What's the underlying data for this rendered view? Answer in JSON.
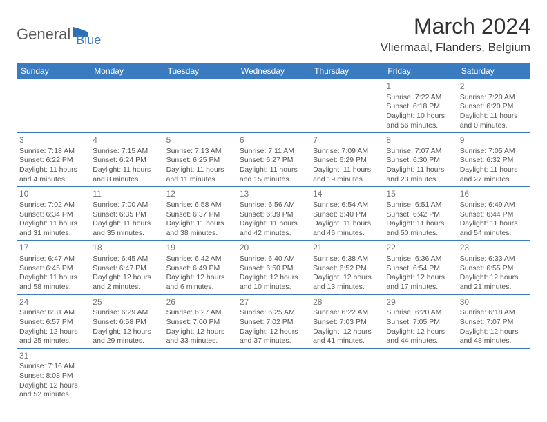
{
  "logo": {
    "text1": "General",
    "text2": "Blue"
  },
  "title": "March 2024",
  "location": "Vliermaal, Flanders, Belgium",
  "colors": {
    "header_bg": "#3b7bbf",
    "header_text": "#ffffff",
    "logo_gray": "#5a5a5a",
    "logo_blue": "#3b7bbf",
    "border": "#3b7bbf",
    "day_num": "#777777",
    "cell_text": "#555555",
    "title_text": "#333333",
    "bg": "#ffffff"
  },
  "typography": {
    "title_size": 32,
    "location_size": 17,
    "logo_size": 22,
    "header_cell_size": 12,
    "day_num_size": 12,
    "cell_text_size": 10.5
  },
  "days_of_week": [
    "Sunday",
    "Monday",
    "Tuesday",
    "Wednesday",
    "Thursday",
    "Friday",
    "Saturday"
  ],
  "weeks": [
    [
      null,
      null,
      null,
      null,
      null,
      {
        "n": "1",
        "sr": "Sunrise: 7:22 AM",
        "ss": "Sunset: 6:18 PM",
        "d1": "Daylight: 10 hours",
        "d2": "and 56 minutes."
      },
      {
        "n": "2",
        "sr": "Sunrise: 7:20 AM",
        "ss": "Sunset: 6:20 PM",
        "d1": "Daylight: 11 hours",
        "d2": "and 0 minutes."
      }
    ],
    [
      {
        "n": "3",
        "sr": "Sunrise: 7:18 AM",
        "ss": "Sunset: 6:22 PM",
        "d1": "Daylight: 11 hours",
        "d2": "and 4 minutes."
      },
      {
        "n": "4",
        "sr": "Sunrise: 7:15 AM",
        "ss": "Sunset: 6:24 PM",
        "d1": "Daylight: 11 hours",
        "d2": "and 8 minutes."
      },
      {
        "n": "5",
        "sr": "Sunrise: 7:13 AM",
        "ss": "Sunset: 6:25 PM",
        "d1": "Daylight: 11 hours",
        "d2": "and 11 minutes."
      },
      {
        "n": "6",
        "sr": "Sunrise: 7:11 AM",
        "ss": "Sunset: 6:27 PM",
        "d1": "Daylight: 11 hours",
        "d2": "and 15 minutes."
      },
      {
        "n": "7",
        "sr": "Sunrise: 7:09 AM",
        "ss": "Sunset: 6:29 PM",
        "d1": "Daylight: 11 hours",
        "d2": "and 19 minutes."
      },
      {
        "n": "8",
        "sr": "Sunrise: 7:07 AM",
        "ss": "Sunset: 6:30 PM",
        "d1": "Daylight: 11 hours",
        "d2": "and 23 minutes."
      },
      {
        "n": "9",
        "sr": "Sunrise: 7:05 AM",
        "ss": "Sunset: 6:32 PM",
        "d1": "Daylight: 11 hours",
        "d2": "and 27 minutes."
      }
    ],
    [
      {
        "n": "10",
        "sr": "Sunrise: 7:02 AM",
        "ss": "Sunset: 6:34 PM",
        "d1": "Daylight: 11 hours",
        "d2": "and 31 minutes."
      },
      {
        "n": "11",
        "sr": "Sunrise: 7:00 AM",
        "ss": "Sunset: 6:35 PM",
        "d1": "Daylight: 11 hours",
        "d2": "and 35 minutes."
      },
      {
        "n": "12",
        "sr": "Sunrise: 6:58 AM",
        "ss": "Sunset: 6:37 PM",
        "d1": "Daylight: 11 hours",
        "d2": "and 38 minutes."
      },
      {
        "n": "13",
        "sr": "Sunrise: 6:56 AM",
        "ss": "Sunset: 6:39 PM",
        "d1": "Daylight: 11 hours",
        "d2": "and 42 minutes."
      },
      {
        "n": "14",
        "sr": "Sunrise: 6:54 AM",
        "ss": "Sunset: 6:40 PM",
        "d1": "Daylight: 11 hours",
        "d2": "and 46 minutes."
      },
      {
        "n": "15",
        "sr": "Sunrise: 6:51 AM",
        "ss": "Sunset: 6:42 PM",
        "d1": "Daylight: 11 hours",
        "d2": "and 50 minutes."
      },
      {
        "n": "16",
        "sr": "Sunrise: 6:49 AM",
        "ss": "Sunset: 6:44 PM",
        "d1": "Daylight: 11 hours",
        "d2": "and 54 minutes."
      }
    ],
    [
      {
        "n": "17",
        "sr": "Sunrise: 6:47 AM",
        "ss": "Sunset: 6:45 PM",
        "d1": "Daylight: 11 hours",
        "d2": "and 58 minutes."
      },
      {
        "n": "18",
        "sr": "Sunrise: 6:45 AM",
        "ss": "Sunset: 6:47 PM",
        "d1": "Daylight: 12 hours",
        "d2": "and 2 minutes."
      },
      {
        "n": "19",
        "sr": "Sunrise: 6:42 AM",
        "ss": "Sunset: 6:49 PM",
        "d1": "Daylight: 12 hours",
        "d2": "and 6 minutes."
      },
      {
        "n": "20",
        "sr": "Sunrise: 6:40 AM",
        "ss": "Sunset: 6:50 PM",
        "d1": "Daylight: 12 hours",
        "d2": "and 10 minutes."
      },
      {
        "n": "21",
        "sr": "Sunrise: 6:38 AM",
        "ss": "Sunset: 6:52 PM",
        "d1": "Daylight: 12 hours",
        "d2": "and 13 minutes."
      },
      {
        "n": "22",
        "sr": "Sunrise: 6:36 AM",
        "ss": "Sunset: 6:54 PM",
        "d1": "Daylight: 12 hours",
        "d2": "and 17 minutes."
      },
      {
        "n": "23",
        "sr": "Sunrise: 6:33 AM",
        "ss": "Sunset: 6:55 PM",
        "d1": "Daylight: 12 hours",
        "d2": "and 21 minutes."
      }
    ],
    [
      {
        "n": "24",
        "sr": "Sunrise: 6:31 AM",
        "ss": "Sunset: 6:57 PM",
        "d1": "Daylight: 12 hours",
        "d2": "and 25 minutes."
      },
      {
        "n": "25",
        "sr": "Sunrise: 6:29 AM",
        "ss": "Sunset: 6:58 PM",
        "d1": "Daylight: 12 hours",
        "d2": "and 29 minutes."
      },
      {
        "n": "26",
        "sr": "Sunrise: 6:27 AM",
        "ss": "Sunset: 7:00 PM",
        "d1": "Daylight: 12 hours",
        "d2": "and 33 minutes."
      },
      {
        "n": "27",
        "sr": "Sunrise: 6:25 AM",
        "ss": "Sunset: 7:02 PM",
        "d1": "Daylight: 12 hours",
        "d2": "and 37 minutes."
      },
      {
        "n": "28",
        "sr": "Sunrise: 6:22 AM",
        "ss": "Sunset: 7:03 PM",
        "d1": "Daylight: 12 hours",
        "d2": "and 41 minutes."
      },
      {
        "n": "29",
        "sr": "Sunrise: 6:20 AM",
        "ss": "Sunset: 7:05 PM",
        "d1": "Daylight: 12 hours",
        "d2": "and 44 minutes."
      },
      {
        "n": "30",
        "sr": "Sunrise: 6:18 AM",
        "ss": "Sunset: 7:07 PM",
        "d1": "Daylight: 12 hours",
        "d2": "and 48 minutes."
      }
    ],
    [
      {
        "n": "31",
        "sr": "Sunrise: 7:16 AM",
        "ss": "Sunset: 8:08 PM",
        "d1": "Daylight: 12 hours",
        "d2": "and 52 minutes."
      },
      null,
      null,
      null,
      null,
      null,
      null
    ]
  ]
}
